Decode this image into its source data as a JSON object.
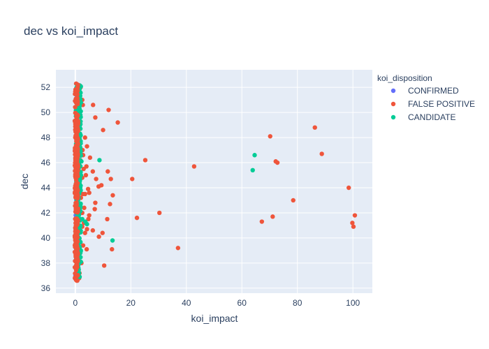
{
  "chart_data": {
    "type": "scatter",
    "title": "dec vs koi_impact",
    "xlabel": "koi_impact",
    "ylabel": "dec",
    "xlim": [
      -7,
      107
    ],
    "ylim": [
      35.6,
      53.4
    ],
    "xticks": [
      0,
      20,
      40,
      60,
      80,
      100
    ],
    "yticks": [
      36,
      38,
      40,
      42,
      44,
      46,
      48,
      50,
      52
    ],
    "grid": true,
    "legend": {
      "title": "koi_disposition",
      "placement": "right"
    },
    "series": [
      {
        "name": "CONFIRMED",
        "color": "#636efa",
        "points": [
          [
            0.05,
            37.0
          ],
          [
            0.1,
            38.2
          ],
          [
            0.2,
            39.4
          ],
          [
            0.3,
            40.6
          ],
          [
            0.15,
            41.8
          ],
          [
            0.4,
            43.0
          ],
          [
            0.25,
            44.2
          ],
          [
            0.35,
            45.4
          ],
          [
            0.1,
            46.6
          ],
          [
            0.5,
            47.8
          ],
          [
            0.2,
            49.0
          ],
          [
            0.3,
            50.2
          ],
          [
            0.4,
            51.4
          ],
          [
            0.6,
            42.4
          ],
          [
            0.7,
            45.0
          ],
          [
            0.8,
            48.4
          ]
        ]
      },
      {
        "name": "FALSE POSITIVE",
        "color": "#ef553b",
        "points": [
          [
            0.3,
            52.3
          ],
          [
            0.5,
            36.6
          ],
          [
            1.4,
            36.8
          ],
          [
            1.9,
            52.0
          ],
          [
            2.5,
            51.0
          ],
          [
            2.7,
            50.6
          ],
          [
            6.4,
            50.6
          ],
          [
            12.0,
            50.2
          ],
          [
            7.2,
            49.6
          ],
          [
            15.3,
            49.2
          ],
          [
            10.0,
            48.6
          ],
          [
            3.5,
            48.0
          ],
          [
            4.2,
            47.3
          ],
          [
            2.6,
            47.0
          ],
          [
            2.8,
            46.6
          ],
          [
            1.8,
            46.2
          ],
          [
            5.3,
            46.4
          ],
          [
            4.0,
            45.7
          ],
          [
            3.0,
            45.5
          ],
          [
            6.3,
            45.3
          ],
          [
            11.7,
            45.3
          ],
          [
            3.8,
            45.0
          ],
          [
            2.5,
            44.8
          ],
          [
            7.5,
            44.7
          ],
          [
            12.8,
            44.7
          ],
          [
            20.5,
            44.7
          ],
          [
            8.4,
            44.1
          ],
          [
            9.4,
            44.2
          ],
          [
            4.6,
            43.9
          ],
          [
            5.0,
            43.6
          ],
          [
            2.7,
            43.5
          ],
          [
            3.5,
            43.5
          ],
          [
            13.5,
            43.4
          ],
          [
            2.0,
            43.2
          ],
          [
            7.2,
            42.8
          ],
          [
            12.5,
            42.7
          ],
          [
            3.2,
            42.4
          ],
          [
            7.0,
            42.3
          ],
          [
            2.5,
            42.0
          ],
          [
            5.0,
            41.8
          ],
          [
            4.7,
            41.5
          ],
          [
            11.5,
            41.5
          ],
          [
            22.2,
            41.6
          ],
          [
            3.1,
            41.2
          ],
          [
            2.5,
            40.9
          ],
          [
            4.2,
            40.7
          ],
          [
            6.3,
            40.6
          ],
          [
            3.5,
            40.4
          ],
          [
            9.8,
            40.4
          ],
          [
            8.5,
            40.1
          ],
          [
            2.8,
            39.4
          ],
          [
            4.1,
            39.1
          ],
          [
            13.2,
            39.1
          ],
          [
            2.2,
            38.0
          ],
          [
            10.4,
            37.8
          ],
          [
            1.5,
            37.2
          ],
          [
            25.2,
            46.2
          ],
          [
            30.3,
            42.0
          ],
          [
            37.0,
            39.2
          ],
          [
            42.8,
            45.7
          ],
          [
            67.2,
            41.3
          ],
          [
            70.2,
            48.1
          ],
          [
            71.1,
            41.7
          ],
          [
            72.2,
            46.1
          ],
          [
            72.8,
            46.0
          ],
          [
            78.5,
            43.0
          ],
          [
            86.3,
            48.8
          ],
          [
            88.8,
            46.7
          ],
          [
            98.5,
            44.0
          ],
          [
            99.8,
            41.2
          ],
          [
            100.2,
            40.9
          ],
          [
            100.7,
            41.8
          ]
        ]
      },
      {
        "name": "CANDIDATE",
        "color": "#00cc96",
        "points": [
          [
            0.5,
            52.0
          ],
          [
            1.0,
            51.4
          ],
          [
            1.5,
            50.3
          ],
          [
            0.8,
            49.0
          ],
          [
            1.8,
            47.2
          ],
          [
            2.2,
            46.1
          ],
          [
            2.0,
            45.0
          ],
          [
            1.2,
            44.0
          ],
          [
            0.6,
            43.0
          ],
          [
            1.6,
            42.3
          ],
          [
            2.5,
            41.5
          ],
          [
            3.6,
            41.3
          ],
          [
            4.2,
            41.1
          ],
          [
            1.0,
            40.5
          ],
          [
            1.4,
            39.6
          ],
          [
            0.7,
            38.4
          ],
          [
            1.8,
            38.8
          ],
          [
            1.1,
            37.6
          ],
          [
            0.9,
            36.9
          ],
          [
            8.7,
            46.2
          ],
          [
            13.4,
            39.8
          ],
          [
            63.9,
            45.4
          ],
          [
            64.6,
            46.6
          ]
        ]
      }
    ]
  }
}
